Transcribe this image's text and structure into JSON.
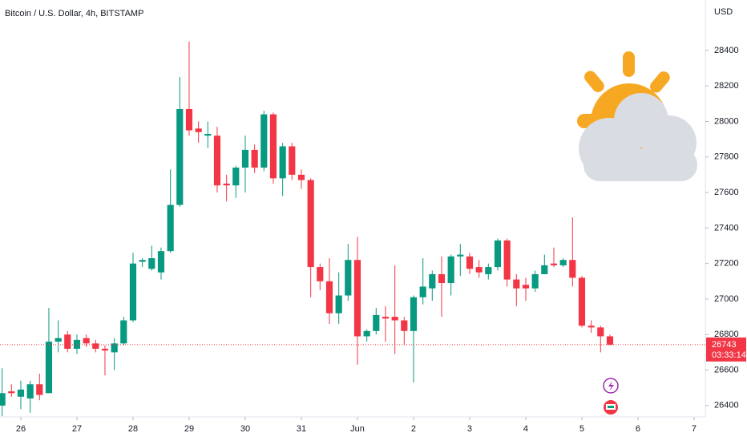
{
  "chart_data": {
    "type": "candlestick",
    "title": "Bitcoin / U.S. Dollar, 4h, BITSTAMP",
    "currency": "USD",
    "countdown": "03:33:14",
    "up_color": "#089981",
    "down_color": "#f23645",
    "grid": false,
    "x": [
      -0.333,
      -0.167,
      0,
      0.167,
      0.333,
      0.5,
      0.667,
      0.833,
      1,
      1.167,
      1.333,
      1.5,
      1.667,
      1.833,
      2,
      2.167,
      2.333,
      2.5,
      2.667,
      2.833,
      3,
      3.167,
      3.333,
      3.5,
      3.667,
      3.833,
      4,
      4.167,
      4.333,
      4.5,
      4.667,
      4.833,
      5,
      5.167,
      5.333,
      5.5,
      5.667,
      5.833,
      6,
      6.167,
      6.333,
      6.5,
      6.667,
      6.833,
      7,
      7.167,
      7.333,
      7.5,
      7.667,
      7.833,
      8,
      8.167,
      8.333,
      8.5,
      8.667,
      8.833,
      9,
      9.167,
      9.333,
      9.5,
      9.667,
      9.833,
      10,
      10.167,
      10.333,
      10.5
    ],
    "open": [
      26400,
      26480,
      26450,
      26440,
      26520,
      26470,
      26760,
      26800,
      26720,
      26780,
      26750,
      26720,
      26700,
      26750,
      26880,
      27210,
      27170,
      27150,
      27270,
      27530,
      28070,
      27960,
      27920,
      27920,
      27650,
      27640,
      27740,
      27840,
      27740,
      28040,
      27680,
      27860,
      27700,
      27670,
      27180,
      27100,
      26920,
      27020,
      27220,
      26790,
      26820,
      26900,
      26900,
      26880,
      26820,
      27010,
      27060,
      27140,
      27090,
      27240,
      27240,
      27180,
      27140,
      27180,
      27330,
      27110,
      27080,
      27060,
      27140,
      27200,
      27190,
      27220,
      27120,
      26850,
      26840,
      26790
    ],
    "high": [
      26610,
      26520,
      26540,
      26540,
      26580,
      26950,
      26880,
      26820,
      26800,
      26800,
      26770,
      26740,
      26780,
      26900,
      27260,
      27230,
      27300,
      27290,
      27730,
      28250,
      28450,
      28000,
      28000,
      27970,
      27700,
      27750,
      27920,
      27870,
      28060,
      28050,
      27880,
      27880,
      27730,
      27680,
      27200,
      27230,
      27150,
      27310,
      27350,
      26830,
      26950,
      26960,
      27190,
      26900,
      27020,
      27230,
      27160,
      27240,
      27250,
      27310,
      27260,
      27220,
      27200,
      27340,
      27340,
      27140,
      27120,
      27160,
      27250,
      27290,
      27230,
      27460,
      27130,
      26880,
      26850,
      26800
    ],
    "low": [
      26340,
      26450,
      26380,
      26360,
      26430,
      26470,
      26700,
      26700,
      26690,
      26730,
      26700,
      26570,
      26600,
      26740,
      26870,
      27180,
      27160,
      27110,
      27260,
      27520,
      27920,
      27880,
      27850,
      27600,
      27550,
      27570,
      27600,
      27710,
      27720,
      27650,
      27580,
      27670,
      27620,
      27010,
      27050,
      26860,
      26860,
      26990,
      26630,
      26760,
      26800,
      26760,
      26690,
      26740,
      26530,
      26970,
      26990,
      26900,
      27020,
      27130,
      27140,
      27120,
      27110,
      27160,
      27070,
      26960,
      26990,
      27040,
      27140,
      27180,
      27180,
      27070,
      26840,
      26810,
      26700,
      26740
    ],
    "close": [
      26470,
      26470,
      26490,
      26520,
      26460,
      26760,
      26780,
      26720,
      26770,
      26750,
      26720,
      26710,
      26750,
      26880,
      27200,
      27220,
      27230,
      27270,
      27530,
      28070,
      27950,
      27940,
      27930,
      27640,
      27640,
      27740,
      27840,
      27740,
      28040,
      27680,
      27860,
      27700,
      27670,
      27180,
      27100,
      26920,
      27020,
      27220,
      26790,
      26820,
      26910,
      26890,
      26880,
      26820,
      27010,
      27070,
      27140,
      27090,
      27240,
      27250,
      27170,
      27150,
      27180,
      27330,
      27110,
      27060,
      27060,
      27140,
      27190,
      27190,
      27220,
      27120,
      26850,
      26840,
      26790,
      26743
    ],
    "xlim": [
      -0.371,
      12.2
    ],
    "xticks": [
      {
        "value": 0,
        "label": "26"
      },
      {
        "value": 1,
        "label": "27"
      },
      {
        "value": 2,
        "label": "28"
      },
      {
        "value": 3,
        "label": "29"
      },
      {
        "value": 4,
        "label": "30"
      },
      {
        "value": 5,
        "label": "31"
      },
      {
        "value": 6,
        "label": "Jun"
      },
      {
        "value": 7,
        "label": "2"
      },
      {
        "value": 8,
        "label": "3"
      },
      {
        "value": 9,
        "label": "4"
      },
      {
        "value": 10,
        "label": "5"
      },
      {
        "value": 11,
        "label": "6"
      },
      {
        "value": 12,
        "label": "7"
      }
    ],
    "ylim": [
      26336,
      28684
    ],
    "yticks": [
      26400,
      26600,
      26800,
      27000,
      27200,
      27400,
      27600,
      27800,
      28000,
      28200,
      28400
    ]
  }
}
